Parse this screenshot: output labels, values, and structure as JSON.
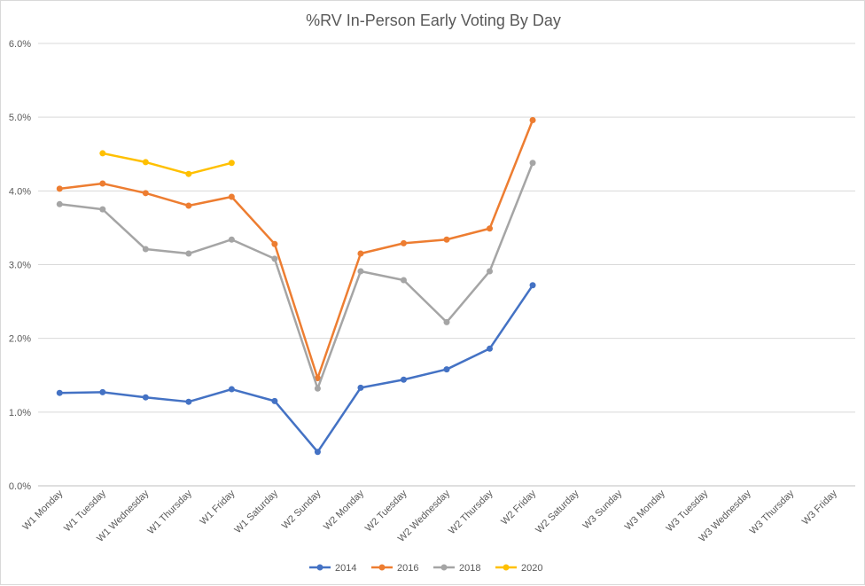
{
  "chart_data": {
    "type": "line",
    "title": "%RV In-Person Early Voting By Day",
    "xlabel": "",
    "ylabel": "",
    "categories": [
      "W1 Monday",
      "W1 Tuesday",
      "W1 Wednesday",
      "W1 Thursday",
      "W1 Friday",
      "W1 Saturday",
      "W2 Sunday",
      "W2 Monday",
      "W2 Tuesday",
      "W2 Wednesday",
      "W2 Thursday",
      "W2 Friday",
      "W2 Saturday",
      "W3 Sunday",
      "W3 Monday",
      "W3 Tuesday",
      "W3 Wednesday",
      "W3 Thursday",
      "W3 Friday"
    ],
    "ylim": [
      0,
      6
    ],
    "yticks": [
      "0.0%",
      "1.0%",
      "2.0%",
      "3.0%",
      "4.0%",
      "5.0%",
      "6.0%"
    ],
    "grid": true,
    "legend_position": "bottom",
    "series": [
      {
        "name": "2014",
        "color": "#4472c4",
        "values": [
          1.26,
          1.27,
          1.2,
          1.14,
          1.31,
          1.15,
          0.46,
          1.33,
          1.44,
          1.58,
          1.86,
          2.72,
          null,
          null,
          null,
          null,
          null,
          null,
          null
        ]
      },
      {
        "name": "2016",
        "color": "#ed7d31",
        "values": [
          4.03,
          4.1,
          3.97,
          3.8,
          3.92,
          3.28,
          1.46,
          3.15,
          3.29,
          3.34,
          3.49,
          4.96,
          null,
          null,
          null,
          null,
          null,
          null,
          null
        ]
      },
      {
        "name": "2018",
        "color": "#a5a5a5",
        "values": [
          3.82,
          3.75,
          3.21,
          3.15,
          3.34,
          3.08,
          1.32,
          2.91,
          2.79,
          2.22,
          2.91,
          4.38,
          null,
          null,
          null,
          null,
          null,
          null,
          null
        ]
      },
      {
        "name": "2020",
        "color": "#ffc000",
        "values": [
          null,
          4.51,
          4.39,
          4.23,
          4.38,
          null,
          null,
          null,
          null,
          null,
          null,
          null,
          null,
          null,
          null,
          null,
          null,
          null,
          null
        ]
      }
    ]
  }
}
